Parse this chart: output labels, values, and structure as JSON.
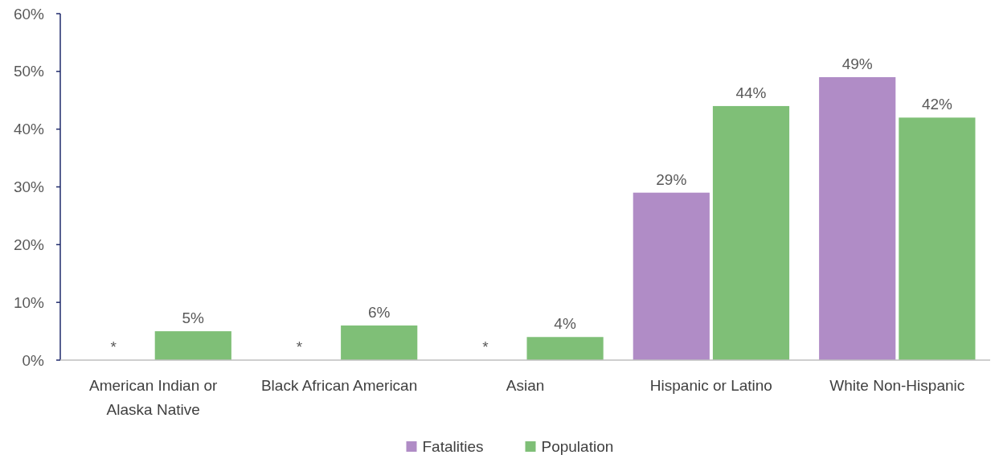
{
  "chart_data": {
    "type": "bar",
    "categories": [
      "American Indian or Alaska Native",
      "Black African American",
      "Asian",
      "Hispanic or Latino",
      "White Non-Hispanic"
    ],
    "series": [
      {
        "name": "Fatalities",
        "color": "#b08cc6",
        "values": [
          null,
          null,
          null,
          29,
          49
        ],
        "value_labels": [
          "*",
          "*",
          "*",
          "29%",
          "49%"
        ]
      },
      {
        "name": "Population",
        "color": "#7fbf77",
        "values": [
          5,
          6,
          4,
          44,
          42
        ],
        "value_labels": [
          "5%",
          "6%",
          "4%",
          "44%",
          "42%"
        ]
      }
    ],
    "ylim": [
      0,
      60
    ],
    "yticks": [
      {
        "value": 0,
        "label": "0%"
      },
      {
        "value": 10,
        "label": "10%"
      },
      {
        "value": 20,
        "label": "20%"
      },
      {
        "value": 30,
        "label": "30%"
      },
      {
        "value": 40,
        "label": "40%"
      },
      {
        "value": 50,
        "label": "50%"
      },
      {
        "value": 60,
        "label": "60%"
      }
    ],
    "grid": false,
    "legend": "bottom"
  }
}
